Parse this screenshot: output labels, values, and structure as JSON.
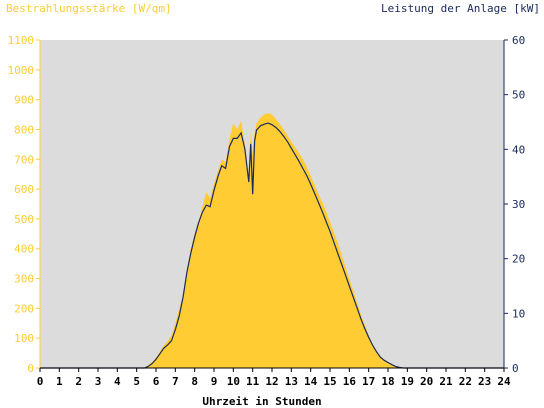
{
  "chart_data": {
    "type": "area",
    "left_axis_label": "Bestrahlungsstärke [W/qm]",
    "right_axis_label": "Leistung der Anlage [kW]",
    "xlabel": "Uhrzeit in Stunden",
    "xlim": [
      0,
      24
    ],
    "x_ticks": [
      "0",
      "1",
      "2",
      "3",
      "4",
      "5",
      "6",
      "7",
      "8",
      "9",
      "10",
      "11",
      "12",
      "13",
      "14",
      "15",
      "16",
      "17",
      "18",
      "19",
      "20",
      "21",
      "22",
      "23",
      "24"
    ],
    "ylim_left": [
      0,
      1100
    ],
    "y_ticks_left": [
      "0",
      "100",
      "200",
      "300",
      "400",
      "500",
      "600",
      "700",
      "800",
      "900",
      "1000",
      "1100"
    ],
    "ylim_right": [
      0,
      60
    ],
    "y_ticks_right": [
      "0",
      "10",
      "20",
      "30",
      "40",
      "50",
      "60"
    ],
    "grid": false,
    "colors": {
      "irradiance": "#ffcc33",
      "power": "#1a2a5a",
      "plot_bg": "#dcdcdc",
      "left_axis": "#ffcc33",
      "right_axis": "#1a2a5a"
    },
    "series": [
      {
        "name": "Bestrahlungsstärke",
        "axis": "left",
        "style": "filled-area",
        "x": [
          0,
          5.4,
          5.6,
          5.8,
          6.0,
          6.2,
          6.4,
          6.6,
          6.8,
          7.0,
          7.2,
          7.4,
          7.6,
          7.8,
          8.0,
          8.2,
          8.4,
          8.6,
          8.8,
          9.0,
          9.2,
          9.4,
          9.6,
          9.8,
          10.0,
          10.2,
          10.4,
          10.6,
          10.8,
          10.9,
          11.0,
          11.1,
          11.2,
          11.4,
          11.6,
          11.8,
          12.0,
          12.2,
          12.4,
          12.6,
          12.8,
          13.0,
          13.2,
          13.4,
          13.6,
          13.8,
          14.0,
          14.2,
          14.4,
          14.6,
          14.8,
          15.0,
          15.2,
          15.4,
          15.6,
          15.8,
          16.0,
          16.2,
          16.4,
          16.6,
          16.8,
          17.0,
          17.2,
          17.4,
          17.6,
          17.8,
          18.0,
          18.2,
          18.4,
          18.6,
          18.8,
          19.0,
          19.2,
          19.4,
          24
        ],
        "y": [
          0,
          0,
          10,
          20,
          35,
          55,
          75,
          90,
          110,
          150,
          200,
          240,
          330,
          400,
          450,
          490,
          540,
          590,
          570,
          620,
          660,
          700,
          690,
          770,
          820,
          800,
          830,
          750,
          640,
          790,
          720,
          790,
          820,
          840,
          850,
          855,
          850,
          835,
          820,
          800,
          780,
          760,
          740,
          720,
          700,
          675,
          645,
          615,
          585,
          555,
          525,
          490,
          455,
          420,
          380,
          340,
          300,
          260,
          220,
          180,
          145,
          110,
          80,
          55,
          40,
          28,
          20,
          12,
          6,
          3,
          1,
          0,
          0,
          0,
          0
        ]
      },
      {
        "name": "Leistung der Anlage",
        "axis": "right",
        "style": "line",
        "x": [
          0,
          5.4,
          5.6,
          5.8,
          6.0,
          6.2,
          6.4,
          6.6,
          6.8,
          7.0,
          7.2,
          7.4,
          7.6,
          7.8,
          8.0,
          8.2,
          8.4,
          8.6,
          8.8,
          9.0,
          9.2,
          9.4,
          9.6,
          9.8,
          10.0,
          10.2,
          10.4,
          10.6,
          10.8,
          10.9,
          11.0,
          11.1,
          11.2,
          11.4,
          11.6,
          11.8,
          12.0,
          12.2,
          12.4,
          12.6,
          12.8,
          13.0,
          13.2,
          13.4,
          13.6,
          13.8,
          14.0,
          14.2,
          14.4,
          14.6,
          14.8,
          15.0,
          15.2,
          15.4,
          15.6,
          15.8,
          16.0,
          16.2,
          16.4,
          16.6,
          16.8,
          17.0,
          17.2,
          17.4,
          17.6,
          17.8,
          18.0,
          18.2,
          18.4,
          18.6,
          18.8,
          19.0,
          19.2,
          19.4,
          24
        ],
        "y": [
          0,
          0,
          0.3,
          0.8,
          1.6,
          2.6,
          3.6,
          4.2,
          5.0,
          7.0,
          9.5,
          13.0,
          17.5,
          21.0,
          24.0,
          26.5,
          28.5,
          29.8,
          29.5,
          32.5,
          35.0,
          37.0,
          36.5,
          40.5,
          42.0,
          42.0,
          43.0,
          40.0,
          34.0,
          41.0,
          31.8,
          41.5,
          43.5,
          44.3,
          44.6,
          44.8,
          44.5,
          44.0,
          43.3,
          42.4,
          41.4,
          40.2,
          39.0,
          37.8,
          36.5,
          35.2,
          33.6,
          32.0,
          30.3,
          28.6,
          26.8,
          25.0,
          23.0,
          21.0,
          19.0,
          17.0,
          15.0,
          13.0,
          11.0,
          9.0,
          7.2,
          5.6,
          4.2,
          3.0,
          2.0,
          1.4,
          1.0,
          0.6,
          0.3,
          0.1,
          0,
          0,
          0,
          0,
          0
        ]
      }
    ]
  }
}
